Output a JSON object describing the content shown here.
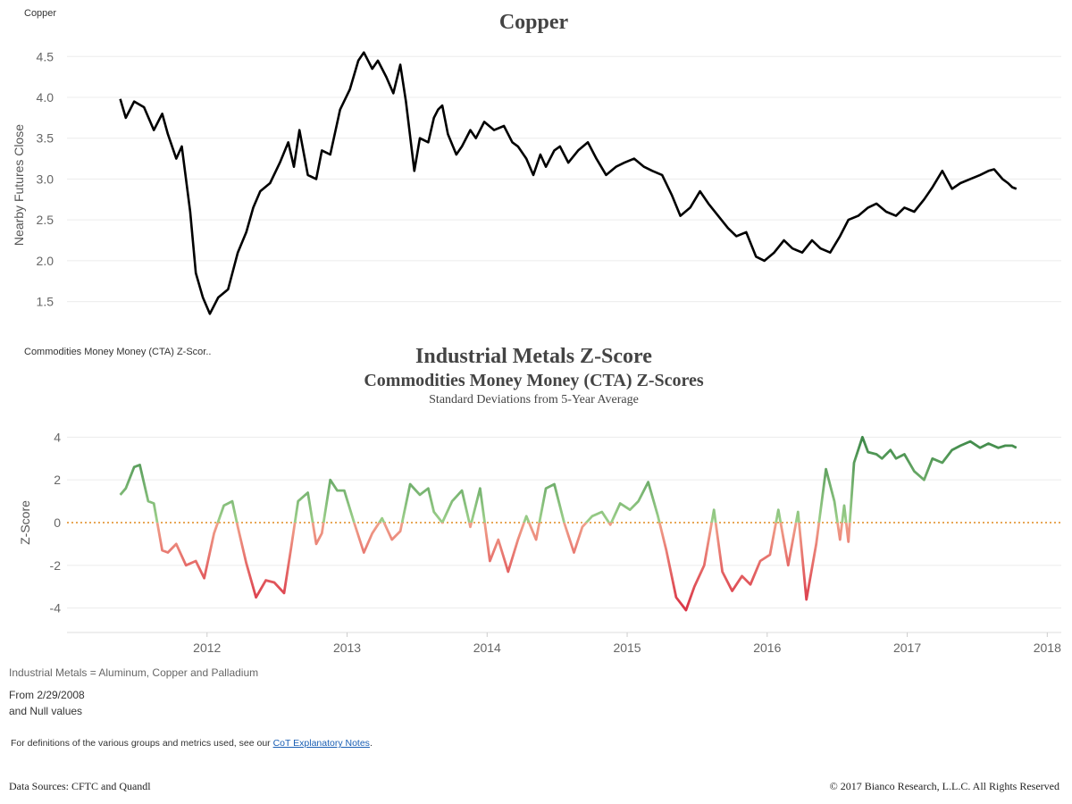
{
  "header": {
    "sheet1_label": "Copper",
    "sheet2_label": "Commodities Money Money (CTA) Z-Scor.."
  },
  "copper": {
    "title": "Copper",
    "ylabel": "Nearby Futures Close",
    "line_color": "#000000"
  },
  "zscore": {
    "title": "Industrial Metals Z-Score",
    "subtitle": "Commodities Money Money (CTA) Z-Scores",
    "subtitle2": "Standard Deviations from 5-Year Average",
    "ylabel": "Z-Score",
    "zero_line_color": "#e08a1e",
    "pos_color_high": "#2e7d3e",
    "pos_color_low": "#9ccf8a",
    "neg_color_low": "#f0a08a",
    "neg_color_high": "#d7263d"
  },
  "footer": {
    "note": "Industrial Metals = Aluminum, Copper and Palladium",
    "from_line1": "From 2/29/2008",
    "from_line2": "and Null values",
    "defs_prefix": "For definitions of the various groups and metrics used, see our ",
    "defs_link": "CoT Explanatory Notes",
    "defs_suffix": ".",
    "sources": "Data Sources: CFTC and Quandl",
    "copyright": "© 2017 Bianco Research, L.L.C. All Rights Reserved"
  },
  "chart_data": [
    {
      "type": "line",
      "title": "Copper",
      "xlabel": "",
      "ylabel": "Nearby Futures Close",
      "ylim": [
        1.2,
        4.7
      ],
      "xlim": [
        2011.0,
        2018.1
      ],
      "yticks": [
        "1.5",
        "2.0",
        "2.5",
        "3.0",
        "3.5",
        "4.0",
        "4.5"
      ],
      "grid": true,
      "series": [
        {
          "x": [
            2011.38,
            2011.42,
            2011.48,
            2011.55,
            2011.62,
            2011.68,
            2011.72,
            2011.78,
            2011.82,
            2011.88,
            2011.92,
            2011.97,
            2012.02,
            2012.08,
            2012.15,
            2012.22,
            2012.28,
            2012.33,
            2012.38,
            2012.45,
            2012.52,
            2012.58,
            2012.62,
            2012.66,
            2012.72,
            2012.78,
            2012.82,
            2012.88,
            2012.95,
            2013.02,
            2013.08,
            2013.12,
            2013.18,
            2013.22,
            2013.28,
            2013.33,
            2013.38,
            2013.42,
            2013.48,
            2013.52,
            2013.58,
            2013.62,
            2013.65,
            2013.68,
            2013.72,
            2013.78,
            2013.82,
            2013.88,
            2013.92,
            2013.98,
            2014.05,
            2014.12,
            2014.18,
            2014.22,
            2014.28,
            2014.33,
            2014.38,
            2014.42,
            2014.48,
            2014.52,
            2014.58,
            2014.65,
            2014.72,
            2014.78,
            2014.85,
            2014.92,
            2014.98,
            2015.05,
            2015.12,
            2015.18,
            2015.25,
            2015.32,
            2015.38,
            2015.45,
            2015.52,
            2015.58,
            2015.65,
            2015.72,
            2015.78,
            2015.85,
            2015.92,
            2015.98,
            2016.05,
            2016.12,
            2016.18,
            2016.25,
            2016.32,
            2016.38,
            2016.45,
            2016.52,
            2016.58,
            2016.65,
            2016.72,
            2016.78,
            2016.85,
            2016.92,
            2016.98,
            2017.05,
            2017.12,
            2017.18,
            2017.25,
            2017.32,
            2017.38,
            2017.45,
            2017.52,
            2017.58,
            2017.62,
            2017.68,
            2017.72,
            2017.75,
            2017.78
          ],
          "y": [
            3.98,
            3.75,
            3.95,
            3.88,
            3.6,
            3.8,
            3.55,
            3.25,
            3.4,
            2.6,
            1.85,
            1.55,
            1.35,
            1.55,
            1.65,
            2.1,
            2.35,
            2.65,
            2.85,
            2.95,
            3.2,
            3.45,
            3.15,
            3.6,
            3.05,
            3.0,
            3.35,
            3.3,
            3.85,
            4.1,
            4.45,
            4.55,
            4.35,
            4.45,
            4.25,
            4.05,
            4.4,
            3.95,
            3.1,
            3.5,
            3.45,
            3.75,
            3.85,
            3.9,
            3.55,
            3.3,
            3.4,
            3.6,
            3.5,
            3.7,
            3.6,
            3.65,
            3.45,
            3.4,
            3.25,
            3.05,
            3.3,
            3.15,
            3.35,
            3.4,
            3.2,
            3.35,
            3.45,
            3.25,
            3.05,
            3.15,
            3.2,
            3.25,
            3.15,
            3.1,
            3.05,
            2.8,
            2.55,
            2.65,
            2.85,
            2.7,
            2.55,
            2.4,
            2.3,
            2.35,
            2.05,
            2.0,
            2.1,
            2.25,
            2.15,
            2.1,
            2.25,
            2.15,
            2.1,
            2.3,
            2.5,
            2.55,
            2.65,
            2.7,
            2.6,
            2.55,
            2.65,
            2.6,
            2.75,
            2.9,
            3.1,
            2.88,
            2.95,
            3.0,
            3.05,
            3.1,
            3.12,
            3.0,
            2.95,
            2.9,
            2.88
          ],
          "color": "#000000"
        }
      ]
    },
    {
      "type": "line",
      "title": "Industrial Metals Z-Score",
      "subtitle": "Commodities Money Money (CTA) Z-Scores",
      "xlabel": "",
      "ylabel": "Z-Score",
      "ylim": [
        -4.6,
        4.6
      ],
      "xlim": [
        2011.0,
        2018.1
      ],
      "yticks": [
        "-4",
        "-2",
        "0",
        "2",
        "4"
      ],
      "xticks": [
        "2012",
        "2013",
        "2014",
        "2015",
        "2016",
        "2017",
        "2018"
      ],
      "reference_line": 0,
      "grid": true,
      "series": [
        {
          "x": [
            2011.38,
            2011.42,
            2011.48,
            2011.52,
            2011.58,
            2011.62,
            2011.68,
            2011.72,
            2011.78,
            2011.85,
            2011.92,
            2011.98,
            2012.05,
            2012.12,
            2012.18,
            2012.22,
            2012.28,
            2012.35,
            2012.42,
            2012.48,
            2012.55,
            2012.6,
            2012.65,
            2012.72,
            2012.78,
            2012.82,
            2012.88,
            2012.93,
            2012.98,
            2013.05,
            2013.12,
            2013.18,
            2013.25,
            2013.32,
            2013.38,
            2013.45,
            2013.52,
            2013.58,
            2013.62,
            2013.68,
            2013.75,
            2013.82,
            2013.88,
            2013.95,
            2014.02,
            2014.08,
            2014.15,
            2014.22,
            2014.28,
            2014.35,
            2014.42,
            2014.48,
            2014.55,
            2014.62,
            2014.68,
            2014.75,
            2014.82,
            2014.88,
            2014.95,
            2015.02,
            2015.08,
            2015.15,
            2015.22,
            2015.28,
            2015.35,
            2015.42,
            2015.48,
            2015.55,
            2015.62,
            2015.68,
            2015.75,
            2015.82,
            2015.88,
            2015.95,
            2016.02,
            2016.08,
            2016.15,
            2016.22,
            2016.28,
            2016.35,
            2016.42,
            2016.48,
            2016.52,
            2016.55,
            2016.58,
            2016.62,
            2016.68,
            2016.72,
            2016.78,
            2016.82,
            2016.88,
            2016.92,
            2016.98,
            2017.05,
            2017.12,
            2017.18,
            2017.25,
            2017.32,
            2017.38,
            2017.45,
            2017.52,
            2017.58,
            2017.65,
            2017.7,
            2017.75,
            2017.78
          ],
          "y": [
            1.3,
            1.6,
            2.6,
            2.7,
            1.0,
            0.9,
            -1.3,
            -1.4,
            -1.0,
            -2.0,
            -1.8,
            -2.6,
            -0.5,
            0.8,
            1.0,
            -0.2,
            -1.9,
            -3.5,
            -2.7,
            -2.8,
            -3.3,
            -1.2,
            1.0,
            1.4,
            -1.0,
            -0.5,
            2.0,
            1.5,
            1.5,
            0.0,
            -1.4,
            -0.5,
            0.2,
            -0.8,
            -0.4,
            1.8,
            1.3,
            1.6,
            0.5,
            0.0,
            1.0,
            1.5,
            -0.2,
            1.6,
            -1.8,
            -0.8,
            -2.3,
            -0.8,
            0.3,
            -0.8,
            1.6,
            1.8,
            0.0,
            -1.4,
            -0.2,
            0.3,
            0.5,
            -0.1,
            0.9,
            0.6,
            1.0,
            1.9,
            0.3,
            -1.3,
            -3.5,
            -4.1,
            -3.0,
            -2.0,
            0.6,
            -2.3,
            -3.2,
            -2.5,
            -2.9,
            -1.8,
            -1.5,
            0.6,
            -2.0,
            0.5,
            -3.6,
            -1.0,
            2.5,
            1.0,
            -0.8,
            0.8,
            -0.9,
            2.8,
            4.0,
            3.3,
            3.2,
            3.0,
            3.4,
            3.0,
            3.2,
            2.4,
            2.0,
            3.0,
            2.8,
            3.4,
            3.6,
            3.8,
            3.5,
            3.7,
            3.5,
            3.6,
            3.6,
            3.5
          ]
        }
      ]
    }
  ]
}
